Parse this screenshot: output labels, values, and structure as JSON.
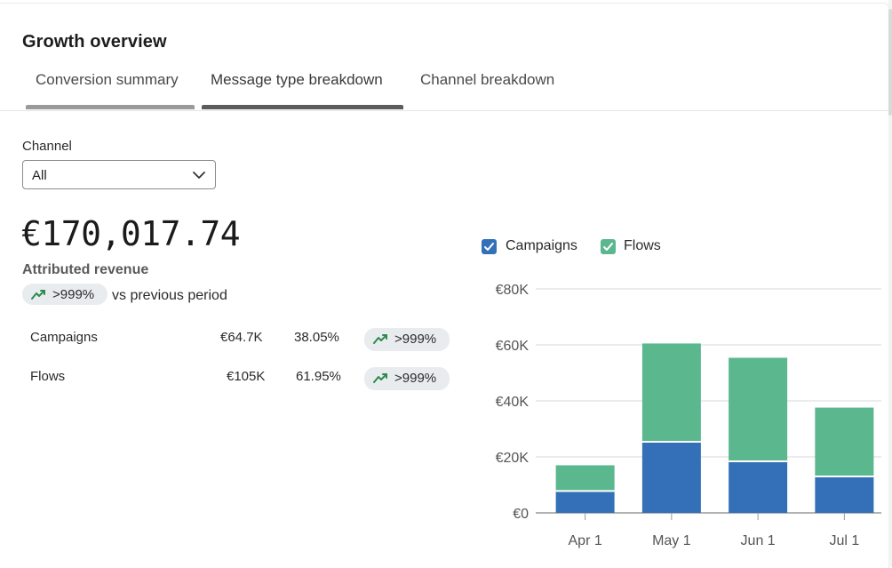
{
  "header": {
    "title": "Growth overview"
  },
  "tabs": [
    {
      "label": "Conversion summary"
    },
    {
      "label": "Message type breakdown"
    },
    {
      "label": "Channel breakdown"
    }
  ],
  "filter": {
    "label": "Channel",
    "value": "All"
  },
  "summary": {
    "value": "€170,017.74",
    "label": "Attributed revenue",
    "change": ">999%",
    "change_suffix": "vs previous period"
  },
  "breakdown": [
    {
      "name": "Campaigns",
      "amount": "€64.7K",
      "share": "38.05%",
      "change": ">999%"
    },
    {
      "name": "Flows",
      "amount": "€105K",
      "share": "61.95%",
      "change": ">999%"
    }
  ],
  "colors": {
    "campaigns": "#3470b8",
    "flows": "#5bb78e",
    "trend": "#2d8a4e"
  },
  "chart_data": {
    "type": "bar",
    "stacked": true,
    "categories": [
      "Apr 1",
      "May 1",
      "Jun 1",
      "Jul 1"
    ],
    "series": [
      {
        "name": "Campaigns",
        "values": [
          7800,
          25400,
          18400,
          13000
        ]
      },
      {
        "name": "Flows",
        "values": [
          9200,
          35100,
          37000,
          24600
        ]
      }
    ],
    "ylim": [
      0,
      80000
    ],
    "yticks": [
      {
        "value": 0,
        "label": "€0"
      },
      {
        "value": 20000,
        "label": "€20K"
      },
      {
        "value": 40000,
        "label": "€40K"
      },
      {
        "value": 60000,
        "label": "€60K"
      },
      {
        "value": 80000,
        "label": "€80K"
      }
    ],
    "legend": [
      {
        "name": "Campaigns",
        "checked": true
      },
      {
        "name": "Flows",
        "checked": true
      }
    ]
  }
}
